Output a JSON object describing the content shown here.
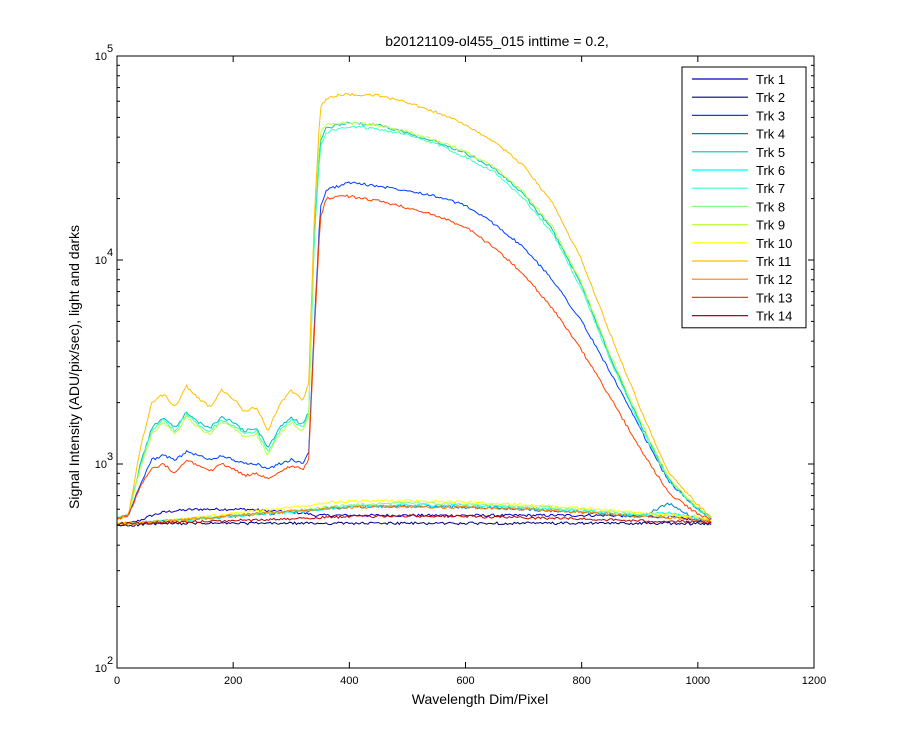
{
  "chart_data": {
    "type": "line",
    "title": "b20121109-ol455_015 inttime = 0.2,",
    "xlabel": "Wavelength Dim/Pixel",
    "ylabel": "Signal Intensity (ADU/pix/sec), light and darks",
    "xlim": [
      0,
      1200
    ],
    "ylim": [
      100,
      100000
    ],
    "yscale": "log",
    "xticks": [
      "0",
      "200",
      "400",
      "600",
      "800",
      "1000",
      "1200"
    ],
    "yticks": [
      {
        "base": "10",
        "exp": "2"
      },
      {
        "base": "10",
        "exp": "3"
      },
      {
        "base": "10",
        "exp": "4"
      },
      {
        "base": "10",
        "exp": "5"
      }
    ],
    "legend_position": "top-right",
    "grid": false,
    "x": [
      0,
      20,
      40,
      60,
      80,
      100,
      120,
      140,
      160,
      180,
      200,
      220,
      240,
      260,
      280,
      300,
      320,
      330,
      340,
      350,
      360,
      380,
      400,
      450,
      500,
      550,
      600,
      650,
      700,
      750,
      800,
      850,
      900,
      950,
      1000,
      1024
    ],
    "series": [
      {
        "name": "Trk 1",
        "color": "#0000bf",
        "values": [
          510,
          510,
          530,
          560,
          580,
          590,
          595,
          600,
          600,
          600,
          600,
          600,
          595,
          590,
          585,
          580,
          575,
          570,
          560,
          560,
          560,
          560,
          560,
          560,
          560,
          560,
          560,
          560,
          560,
          560,
          560,
          560,
          555,
          550,
          530,
          520
        ]
      },
      {
        "name": "Trk 2",
        "color": "#00007f",
        "values": [
          500,
          500,
          505,
          508,
          510,
          510,
          512,
          512,
          512,
          512,
          512,
          512,
          512,
          512,
          512,
          512,
          512,
          512,
          512,
          512,
          512,
          512,
          512,
          512,
          512,
          512,
          512,
          512,
          512,
          512,
          512,
          512,
          512,
          512,
          510,
          505
        ]
      },
      {
        "name": "Trk 3",
        "color": "#0040ff",
        "values": [
          540,
          560,
          800,
          1050,
          1100,
          1050,
          1150,
          1100,
          1050,
          1100,
          1050,
          1000,
          1000,
          950,
          1000,
          1050,
          1000,
          1150,
          5000,
          18000,
          22000,
          23000,
          24000,
          23000,
          22000,
          20500,
          18500,
          15000,
          11500,
          8000,
          5000,
          2800,
          1500,
          820,
          600,
          540
        ]
      },
      {
        "name": "Trk 4",
        "color": "#0080bf",
        "values": [
          510,
          510,
          515,
          520,
          525,
          530,
          535,
          540,
          545,
          550,
          555,
          560,
          565,
          570,
          575,
          580,
          585,
          590,
          595,
          600,
          605,
          610,
          615,
          620,
          620,
          618,
          615,
          610,
          600,
          590,
          580,
          565,
          550,
          640,
          530,
          520
        ]
      },
      {
        "name": "Trk 5",
        "color": "#00bfbf",
        "values": [
          540,
          560,
          1000,
          1500,
          1700,
          1500,
          1800,
          1600,
          1500,
          1700,
          1600,
          1450,
          1500,
          1200,
          1500,
          1700,
          1550,
          1800,
          14000,
          38000,
          44000,
          46000,
          47000,
          46000,
          42000,
          38000,
          33500,
          28000,
          21000,
          14000,
          7500,
          3300,
          1600,
          840,
          600,
          540
        ]
      },
      {
        "name": "Trk 6",
        "color": "#00ffff",
        "values": [
          510,
          512,
          515,
          520,
          525,
          530,
          535,
          540,
          545,
          550,
          555,
          560,
          565,
          570,
          575,
          580,
          585,
          590,
          595,
          600,
          605,
          610,
          615,
          625,
          630,
          628,
          625,
          618,
          610,
          600,
          590,
          575,
          560,
          580,
          540,
          525
        ]
      },
      {
        "name": "Trk 7",
        "color": "#40ffbf",
        "values": [
          540,
          560,
          980,
          1450,
          1650,
          1450,
          1750,
          1550,
          1450,
          1650,
          1550,
          1400,
          1450,
          1150,
          1450,
          1650,
          1500,
          1750,
          13000,
          36000,
          42000,
          44000,
          45000,
          44000,
          41000,
          37000,
          32000,
          27000,
          20000,
          13500,
          7200,
          3200,
          1550,
          830,
          600,
          540
        ]
      },
      {
        "name": "Trk 8",
        "color": "#80ff80",
        "values": [
          510,
          512,
          515,
          520,
          525,
          530,
          535,
          540,
          548,
          555,
          560,
          566,
          572,
          578,
          584,
          590,
          596,
          600,
          605,
          610,
          615,
          620,
          630,
          640,
          645,
          640,
          635,
          628,
          620,
          610,
          598,
          582,
          565,
          560,
          545,
          528
        ]
      },
      {
        "name": "Trk 9",
        "color": "#bfff40",
        "values": [
          540,
          560,
          950,
          1400,
          1600,
          1400,
          1700,
          1500,
          1400,
          1600,
          1500,
          1350,
          1400,
          1100,
          1400,
          1600,
          1450,
          1700,
          18000,
          42000,
          46000,
          47000,
          47000,
          46000,
          42500,
          38500,
          34000,
          28500,
          21500,
          14500,
          7700,
          3400,
          1650,
          850,
          610,
          545
        ]
      },
      {
        "name": "Trk 10",
        "color": "#ffff00",
        "values": [
          510,
          512,
          515,
          520,
          525,
          532,
          540,
          548,
          556,
          564,
          572,
          580,
          588,
          596,
          604,
          612,
          620,
          626,
          632,
          638,
          645,
          650,
          655,
          660,
          660,
          655,
          650,
          642,
          632,
          620,
          608,
          592,
          575,
          565,
          550,
          530
        ]
      },
      {
        "name": "Trk 11",
        "color": "#ffbf00",
        "values": [
          540,
          560,
          1200,
          2000,
          2200,
          1900,
          2400,
          2100,
          1900,
          2300,
          2100,
          1800,
          1900,
          1450,
          1950,
          2300,
          2050,
          2500,
          17000,
          56000,
          62000,
          64000,
          65000,
          64000,
          59000,
          53000,
          46000,
          38000,
          29000,
          19000,
          10000,
          4300,
          1900,
          900,
          630,
          550
        ]
      },
      {
        "name": "Trk 12",
        "color": "#ff8000",
        "values": [
          510,
          512,
          514,
          518,
          522,
          528,
          534,
          540,
          546,
          552,
          558,
          564,
          570,
          576,
          582,
          588,
          594,
          598,
          600,
          603,
          606,
          610,
          614,
          618,
          618,
          615,
          612,
          606,
          600,
          592,
          582,
          568,
          552,
          545,
          535,
          522
        ]
      },
      {
        "name": "Trk 13",
        "color": "#ff4000",
        "values": [
          540,
          560,
          780,
          950,
          1000,
          900,
          1050,
          980,
          920,
          1000,
          950,
          880,
          900,
          850,
          920,
          980,
          940,
          1050,
          4500,
          16000,
          20000,
          20500,
          20500,
          19500,
          18000,
          16500,
          14500,
          11500,
          8500,
          5800,
          3600,
          2100,
          1200,
          720,
          570,
          530
        ]
      },
      {
        "name": "Trk 14",
        "color": "#bf0000",
        "values": [
          510,
          511,
          512,
          514,
          516,
          518,
          520,
          522,
          524,
          526,
          528,
          530,
          532,
          534,
          536,
          538,
          540,
          542,
          544,
          546,
          548,
          550,
          552,
          555,
          556,
          555,
          553,
          550,
          546,
          542,
          538,
          532,
          526,
          524,
          518,
          512
        ]
      }
    ]
  }
}
